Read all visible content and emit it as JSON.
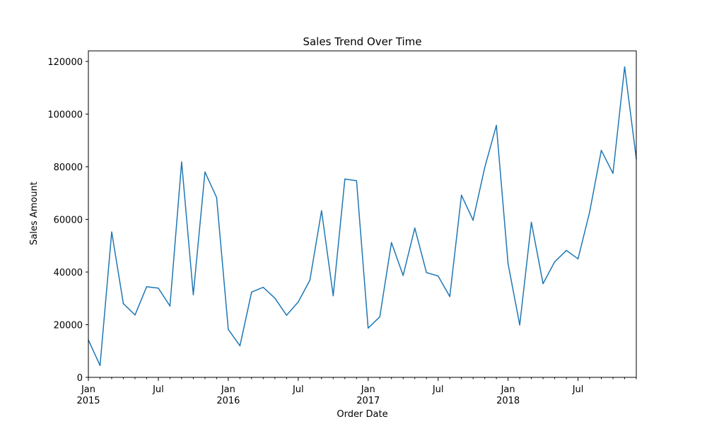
{
  "chart_data": {
    "type": "line",
    "title": "Sales Trend Over Time",
    "xlabel": "Order Date",
    "ylabel": "Sales Amount",
    "ylim": [
      0,
      124000
    ],
    "yticks": [
      0,
      20000,
      40000,
      60000,
      80000,
      100000,
      120000
    ],
    "xlim": [
      "2015-01",
      "2018-12"
    ],
    "x_major_ticks": [
      {
        "month": "2015-01",
        "label": "Jan",
        "sublabel": "2015"
      },
      {
        "month": "2015-07",
        "label": "Jul",
        "sublabel": ""
      },
      {
        "month": "2016-01",
        "label": "Jan",
        "sublabel": "2016"
      },
      {
        "month": "2016-07",
        "label": "Jul",
        "sublabel": ""
      },
      {
        "month": "2017-01",
        "label": "Jan",
        "sublabel": "2017"
      },
      {
        "month": "2017-07",
        "label": "Jul",
        "sublabel": ""
      },
      {
        "month": "2018-01",
        "label": "Jan",
        "sublabel": "2018"
      },
      {
        "month": "2018-07",
        "label": "Jul",
        "sublabel": ""
      }
    ],
    "line_color": "#1f77b4",
    "grid": false,
    "series": [
      {
        "x": [
          "2015-01",
          "2015-02",
          "2015-03",
          "2015-04",
          "2015-05",
          "2015-06",
          "2015-07",
          "2015-08",
          "2015-09",
          "2015-10",
          "2015-11",
          "2015-12",
          "2016-01",
          "2016-02",
          "2016-03",
          "2016-04",
          "2016-05",
          "2016-06",
          "2016-07",
          "2016-08",
          "2016-09",
          "2016-10",
          "2016-11",
          "2016-12",
          "2017-01",
          "2017-02",
          "2017-03",
          "2017-04",
          "2017-05",
          "2017-06",
          "2017-07",
          "2017-08",
          "2017-09",
          "2017-10",
          "2017-11",
          "2017-12",
          "2018-01",
          "2018-02",
          "2018-03",
          "2018-04",
          "2018-05",
          "2018-06",
          "2018-07",
          "2018-08",
          "2018-09",
          "2018-10",
          "2018-11",
          "2018-12"
        ],
        "values": [
          14200,
          4500,
          55200,
          28000,
          23700,
          34400,
          33900,
          27100,
          81800,
          31400,
          78000,
          68300,
          18200,
          12000,
          32400,
          34200,
          30100,
          23600,
          28600,
          36900,
          63300,
          31000,
          75300,
          74700,
          18700,
          23000,
          51200,
          38700,
          56700,
          39800,
          38500,
          30700,
          69200,
          59700,
          79700,
          95700,
          43200,
          19900,
          58900,
          35600,
          43900,
          48200,
          45000,
          62800,
          86200,
          77500,
          117900,
          83000
        ]
      }
    ]
  }
}
